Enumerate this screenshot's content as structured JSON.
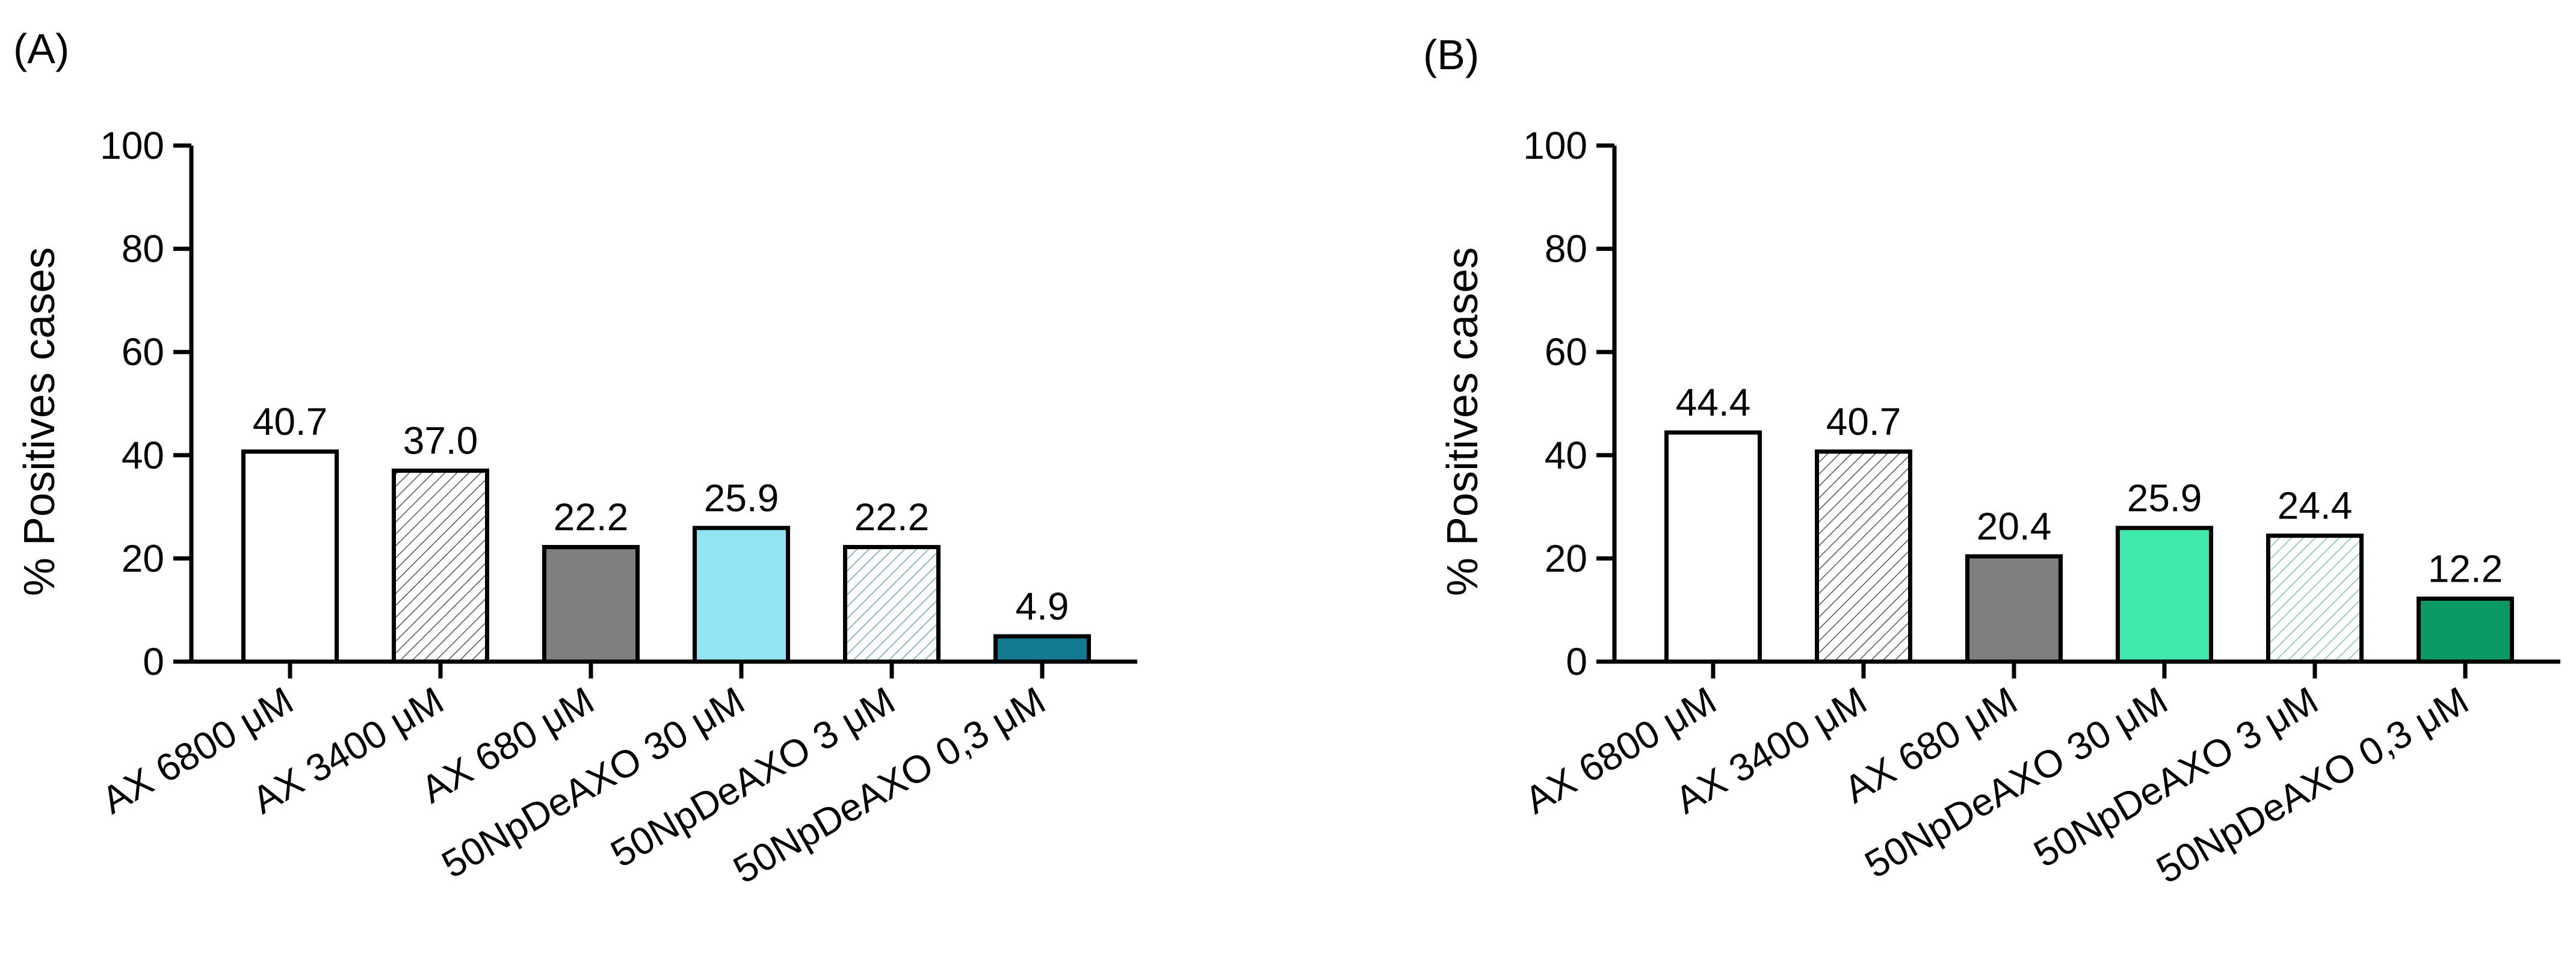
{
  "chart_data": [
    {
      "panel_label": "(A)",
      "type": "bar",
      "categories": [
        "AX 6800 μM",
        "AX 3400 μM",
        "AX 680 μM",
        "50NpDeAXO 30 μM",
        "50NpDeAXO 3 μM",
        "50NpDeAXO 0,3 μM"
      ],
      "values": [
        40.7,
        37.0,
        22.2,
        25.9,
        22.2,
        4.9
      ],
      "value_labels": [
        "40.7",
        "37.0",
        "22.2",
        "25.9",
        "22.2",
        "4.9"
      ],
      "bar_styles": [
        {
          "fill": "#ffffff",
          "pattern": "none"
        },
        {
          "fill": "#ffffff",
          "pattern": "hatch",
          "hatch_color": "#555555"
        },
        {
          "fill": "#7f7f7f",
          "pattern": "none"
        },
        {
          "fill": "#93e4f2",
          "pattern": "none"
        },
        {
          "fill": "#ffffff",
          "pattern": "hatch",
          "hatch_color": "#6fa9b3"
        },
        {
          "fill": "#137a92",
          "pattern": "none"
        }
      ],
      "ylabel": "% Positives cases",
      "ylim": [
        0,
        100
      ],
      "yticks": [
        0,
        20,
        40,
        60,
        80,
        100
      ]
    },
    {
      "panel_label": "(B)",
      "type": "bar",
      "categories": [
        "AX 6800 μM",
        "AX 3400 μM",
        "AX 680 μM",
        "50NpDeAXO 30 μM",
        "50NpDeAXO 3 μM",
        "50NpDeAXO 0,3 μM"
      ],
      "values": [
        44.4,
        40.7,
        20.4,
        25.9,
        24.4,
        12.2
      ],
      "value_labels": [
        "44.4",
        "40.7",
        "20.4",
        "25.9",
        "24.4",
        "12.2"
      ],
      "bar_styles": [
        {
          "fill": "#ffffff",
          "pattern": "none"
        },
        {
          "fill": "#ffffff",
          "pattern": "hatch",
          "hatch_color": "#555555"
        },
        {
          "fill": "#7f7f7f",
          "pattern": "none"
        },
        {
          "fill": "#41e8ac",
          "pattern": "none"
        },
        {
          "fill": "#ffffff",
          "pattern": "hatch",
          "hatch_color": "#7cc4a6"
        },
        {
          "fill": "#0b9a66",
          "pattern": "none"
        }
      ],
      "ylabel": "% Positives cases",
      "ylim": [
        0,
        100
      ],
      "yticks": [
        0,
        20,
        40,
        60,
        80,
        100
      ]
    }
  ]
}
